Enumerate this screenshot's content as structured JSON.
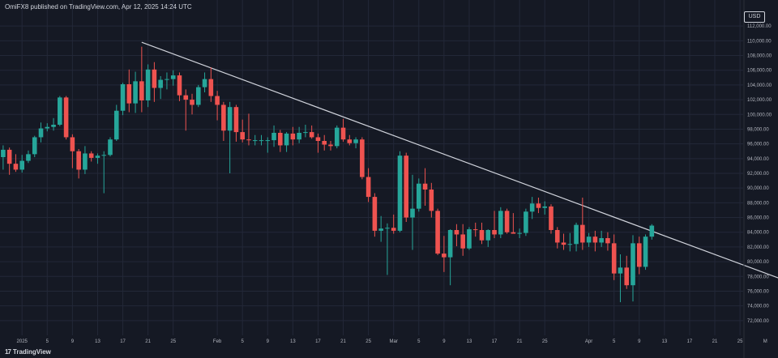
{
  "header": {
    "publisher": "OmiFX8 published on TradingView.com, Apr 12, 2025 14:24 UTC"
  },
  "brand": {
    "logo": "17",
    "name": "TradingView"
  },
  "currency": "USD",
  "colors": {
    "background": "#151924",
    "grid": "#232838",
    "up": "#26a69a",
    "down": "#ef5350",
    "trendline": "#d1d4dc",
    "text": "#b2b5be"
  },
  "chart_data": {
    "type": "candlestick",
    "title": "",
    "ylabel": "USD",
    "ylim": [
      70000,
      114000
    ],
    "y_ticks": [
      72000,
      74000,
      76000,
      78000,
      80000,
      82000,
      84000,
      86000,
      88000,
      90000,
      92000,
      94000,
      96000,
      98000,
      100000,
      102000,
      104000,
      106000,
      108000,
      110000,
      112000
    ],
    "y_tick_labels": [
      "72,000.00",
      "74,000.00",
      "76,000.00",
      "78,000.00",
      "80,000.00",
      "82,000.00",
      "84,000.00",
      "86,000.00",
      "88,000.00",
      "90,000.00",
      "92,000.00",
      "94,000.00",
      "96,000.00",
      "98,000.00",
      "100,000.00",
      "102,000.00",
      "104,000.00",
      "106,000.00",
      "108,000.00",
      "110,000.00",
      "112,000.00"
    ],
    "x_range": [
      -3.5,
      114.5
    ],
    "x_ticks": [
      {
        "day": 0,
        "label": "2025"
      },
      {
        "day": 4,
        "label": "5"
      },
      {
        "day": 8,
        "label": "9"
      },
      {
        "day": 12,
        "label": "13"
      },
      {
        "day": 16,
        "label": "17"
      },
      {
        "day": 20,
        "label": "21"
      },
      {
        "day": 24,
        "label": "25"
      },
      {
        "day": 31,
        "label": "Feb"
      },
      {
        "day": 35,
        "label": "5"
      },
      {
        "day": 39,
        "label": "9"
      },
      {
        "day": 43,
        "label": "13"
      },
      {
        "day": 47,
        "label": "17"
      },
      {
        "day": 51,
        "label": "21"
      },
      {
        "day": 55,
        "label": "25"
      },
      {
        "day": 59,
        "label": "Mar"
      },
      {
        "day": 63,
        "label": "5"
      },
      {
        "day": 67,
        "label": "9"
      },
      {
        "day": 71,
        "label": "13"
      },
      {
        "day": 75,
        "label": "17"
      },
      {
        "day": 79,
        "label": "21"
      },
      {
        "day": 83,
        "label": "25"
      },
      {
        "day": 90,
        "label": "Apr"
      },
      {
        "day": 94,
        "label": "5"
      },
      {
        "day": 98,
        "label": "9"
      },
      {
        "day": 102,
        "label": "13"
      },
      {
        "day": 106,
        "label": "17"
      },
      {
        "day": 110,
        "label": "21"
      },
      {
        "day": 114,
        "label": "25"
      },
      {
        "day": 118,
        "label": "M"
      }
    ],
    "candles": [
      {
        "day": -3,
        "o": 94200,
        "h": 95800,
        "l": 92500,
        "c": 95200
      },
      {
        "day": -2,
        "o": 95200,
        "h": 95500,
        "l": 91800,
        "c": 93300
      },
      {
        "day": -1,
        "o": 93300,
        "h": 94600,
        "l": 92200,
        "c": 92500
      },
      {
        "day": 0,
        "o": 92500,
        "h": 94500,
        "l": 92100,
        "c": 93700
      },
      {
        "day": 1,
        "o": 93700,
        "h": 95100,
        "l": 93400,
        "c": 94600
      },
      {
        "day": 2,
        "o": 94600,
        "h": 97100,
        "l": 94200,
        "c": 96900
      },
      {
        "day": 3,
        "o": 96900,
        "h": 98900,
        "l": 96200,
        "c": 98100
      },
      {
        "day": 4,
        "o": 98100,
        "h": 98800,
        "l": 97700,
        "c": 98300
      },
      {
        "day": 5,
        "o": 98300,
        "h": 99500,
        "l": 97800,
        "c": 98600
      },
      {
        "day": 6,
        "o": 98600,
        "h": 102500,
        "l": 98400,
        "c": 102300
      },
      {
        "day": 7,
        "o": 102300,
        "h": 102500,
        "l": 96600,
        "c": 96900
      },
      {
        "day": 8,
        "o": 96900,
        "h": 97300,
        "l": 92700,
        "c": 95000
      },
      {
        "day": 9,
        "o": 95000,
        "h": 95300,
        "l": 91300,
        "c": 92500
      },
      {
        "day": 10,
        "o": 92500,
        "h": 95700,
        "l": 91900,
        "c": 94700
      },
      {
        "day": 11,
        "o": 94700,
        "h": 95000,
        "l": 93600,
        "c": 94100
      },
      {
        "day": 12,
        "o": 94100,
        "h": 94700,
        "l": 93300,
        "c": 94400
      },
      {
        "day": 13,
        "o": 94400,
        "h": 95000,
        "l": 89300,
        "c": 94500
      },
      {
        "day": 14,
        "o": 94500,
        "h": 96900,
        "l": 94300,
        "c": 96600
      },
      {
        "day": 15,
        "o": 96600,
        "h": 101300,
        "l": 96400,
        "c": 100500
      },
      {
        "day": 16,
        "o": 100500,
        "h": 104300,
        "l": 99900,
        "c": 104100
      },
      {
        "day": 17,
        "o": 104100,
        "h": 106100,
        "l": 100300,
        "c": 101500
      },
      {
        "day": 18,
        "o": 101500,
        "h": 105800,
        "l": 100200,
        "c": 104500
      },
      {
        "day": 19,
        "o": 104500,
        "h": 109200,
        "l": 100300,
        "c": 101900
      },
      {
        "day": 20,
        "o": 101900,
        "h": 106800,
        "l": 101000,
        "c": 106100
      },
      {
        "day": 21,
        "o": 106100,
        "h": 107100,
        "l": 101700,
        "c": 103600
      },
      {
        "day": 22,
        "o": 103600,
        "h": 105200,
        "l": 102100,
        "c": 104700
      },
      {
        "day": 23,
        "o": 104700,
        "h": 105700,
        "l": 103400,
        "c": 104800
      },
      {
        "day": 24,
        "o": 104800,
        "h": 106000,
        "l": 103900,
        "c": 105300
      },
      {
        "day": 25,
        "o": 105300,
        "h": 105700,
        "l": 101800,
        "c": 102600
      },
      {
        "day": 26,
        "o": 102600,
        "h": 103400,
        "l": 97800,
        "c": 102000
      },
      {
        "day": 27,
        "o": 102000,
        "h": 102800,
        "l": 100000,
        "c": 101300
      },
      {
        "day": 28,
        "o": 101300,
        "h": 104000,
        "l": 101000,
        "c": 103700
      },
      {
        "day": 29,
        "o": 103700,
        "h": 105700,
        "l": 103000,
        "c": 104800
      },
      {
        "day": 30,
        "o": 104800,
        "h": 106400,
        "l": 101700,
        "c": 102500
      },
      {
        "day": 31,
        "o": 102500,
        "h": 103200,
        "l": 99200,
        "c": 101300
      },
      {
        "day": 32,
        "o": 101300,
        "h": 101700,
        "l": 96400,
        "c": 97800
      },
      {
        "day": 33,
        "o": 97800,
        "h": 101700,
        "l": 92000,
        "c": 101000
      },
      {
        "day": 34,
        "o": 101000,
        "h": 101300,
        "l": 96300,
        "c": 97600
      },
      {
        "day": 35,
        "o": 97600,
        "h": 99300,
        "l": 96200,
        "c": 96600
      },
      {
        "day": 36,
        "o": 96600,
        "h": 100100,
        "l": 95800,
        "c": 96500
      },
      {
        "day": 37,
        "o": 96500,
        "h": 97200,
        "l": 95800,
        "c": 96500
      },
      {
        "day": 38,
        "o": 96500,
        "h": 97200,
        "l": 95800,
        "c": 96500
      },
      {
        "day": 39,
        "o": 96500,
        "h": 96900,
        "l": 94800,
        "c": 96500
      },
      {
        "day": 40,
        "o": 96500,
        "h": 98500,
        "l": 95600,
        "c": 97500
      },
      {
        "day": 41,
        "o": 97500,
        "h": 97900,
        "l": 94900,
        "c": 95800
      },
      {
        "day": 42,
        "o": 95800,
        "h": 97600,
        "l": 94900,
        "c": 97400
      },
      {
        "day": 43,
        "o": 97400,
        "h": 98300,
        "l": 95800,
        "c": 96600
      },
      {
        "day": 44,
        "o": 96600,
        "h": 98300,
        "l": 96100,
        "c": 97500
      },
      {
        "day": 45,
        "o": 97500,
        "h": 98600,
        "l": 96900,
        "c": 97600
      },
      {
        "day": 46,
        "o": 97600,
        "h": 98500,
        "l": 96700,
        "c": 96900
      },
      {
        "day": 47,
        "o": 96900,
        "h": 97400,
        "l": 94800,
        "c": 96400
      },
      {
        "day": 48,
        "o": 96400,
        "h": 97200,
        "l": 95100,
        "c": 95900
      },
      {
        "day": 49,
        "o": 95900,
        "h": 96400,
        "l": 95100,
        "c": 95700
      },
      {
        "day": 50,
        "o": 95700,
        "h": 98500,
        "l": 95400,
        "c": 98200
      },
      {
        "day": 51,
        "o": 98200,
        "h": 99400,
        "l": 96300,
        "c": 96600
      },
      {
        "day": 52,
        "o": 96600,
        "h": 97200,
        "l": 95800,
        "c": 96100
      },
      {
        "day": 53,
        "o": 96100,
        "h": 96900,
        "l": 95400,
        "c": 96600
      },
      {
        "day": 54,
        "o": 96600,
        "h": 96900,
        "l": 91200,
        "c": 91500
      },
      {
        "day": 55,
        "o": 91500,
        "h": 92700,
        "l": 88100,
        "c": 88800
      },
      {
        "day": 56,
        "o": 88800,
        "h": 89300,
        "l": 83400,
        "c": 84200
      },
      {
        "day": 57,
        "o": 84200,
        "h": 86200,
        "l": 82700,
        "c": 84500
      },
      {
        "day": 58,
        "o": 84500,
        "h": 85200,
        "l": 78200,
        "c": 84600
      },
      {
        "day": 59,
        "o": 84600,
        "h": 86400,
        "l": 83800,
        "c": 84200
      },
      {
        "day": 60,
        "o": 84200,
        "h": 95000,
        "l": 84000,
        "c": 94400
      },
      {
        "day": 61,
        "o": 94400,
        "h": 94800,
        "l": 85400,
        "c": 86000
      },
      {
        "day": 62,
        "o": 86000,
        "h": 91800,
        "l": 81600,
        "c": 87200
      },
      {
        "day": 63,
        "o": 87200,
        "h": 91300,
        "l": 86800,
        "c": 90600
      },
      {
        "day": 64,
        "o": 90600,
        "h": 92700,
        "l": 87600,
        "c": 89800
      },
      {
        "day": 65,
        "o": 89800,
        "h": 90700,
        "l": 86000,
        "c": 86900
      },
      {
        "day": 66,
        "o": 86900,
        "h": 87200,
        "l": 80900,
        "c": 81100
      },
      {
        "day": 67,
        "o": 81100,
        "h": 83500,
        "l": 78600,
        "c": 80600
      },
      {
        "day": 68,
        "o": 80600,
        "h": 84400,
        "l": 76800,
        "c": 84300
      },
      {
        "day": 69,
        "o": 84300,
        "h": 85100,
        "l": 82100,
        "c": 83700
      },
      {
        "day": 70,
        "o": 83700,
        "h": 85100,
        "l": 80800,
        "c": 81800
      },
      {
        "day": 71,
        "o": 81800,
        "h": 84700,
        "l": 81600,
        "c": 84400
      },
      {
        "day": 72,
        "o": 84400,
        "h": 85300,
        "l": 83400,
        "c": 84300
      },
      {
        "day": 73,
        "o": 84300,
        "h": 85300,
        "l": 82400,
        "c": 82900
      },
      {
        "day": 74,
        "o": 82900,
        "h": 84400,
        "l": 82000,
        "c": 84300
      },
      {
        "day": 75,
        "o": 84300,
        "h": 86900,
        "l": 83200,
        "c": 83700
      },
      {
        "day": 76,
        "o": 83700,
        "h": 87400,
        "l": 83200,
        "c": 86900
      },
      {
        "day": 77,
        "o": 86900,
        "h": 87200,
        "l": 83800,
        "c": 84000
      },
      {
        "day": 78,
        "o": 84000,
        "h": 86600,
        "l": 83800,
        "c": 83800
      },
      {
        "day": 79,
        "o": 83800,
        "h": 84500,
        "l": 83200,
        "c": 83900
      },
      {
        "day": 80,
        "o": 83900,
        "h": 87200,
        "l": 83500,
        "c": 86800
      },
      {
        "day": 81,
        "o": 86800,
        "h": 88800,
        "l": 85800,
        "c": 87900
      },
      {
        "day": 82,
        "o": 87900,
        "h": 88700,
        "l": 86600,
        "c": 87300
      },
      {
        "day": 83,
        "o": 87300,
        "h": 88200,
        "l": 86400,
        "c": 87500
      },
      {
        "day": 84,
        "o": 87500,
        "h": 87800,
        "l": 83800,
        "c": 84300
      },
      {
        "day": 85,
        "o": 84300,
        "h": 84700,
        "l": 81800,
        "c": 82600
      },
      {
        "day": 86,
        "o": 82600,
        "h": 83800,
        "l": 81600,
        "c": 82300
      },
      {
        "day": 87,
        "o": 82300,
        "h": 83900,
        "l": 81400,
        "c": 82400
      },
      {
        "day": 88,
        "o": 82400,
        "h": 85300,
        "l": 81400,
        "c": 85000
      },
      {
        "day": 89,
        "o": 85000,
        "h": 88700,
        "l": 81600,
        "c": 82600
      },
      {
        "day": 90,
        "o": 82600,
        "h": 83900,
        "l": 82000,
        "c": 83400
      },
      {
        "day": 91,
        "o": 83400,
        "h": 84200,
        "l": 81400,
        "c": 82600
      },
      {
        "day": 92,
        "o": 82600,
        "h": 84200,
        "l": 82000,
        "c": 83200
      },
      {
        "day": 93,
        "o": 83200,
        "h": 84000,
        "l": 81500,
        "c": 82500
      },
      {
        "day": 94,
        "o": 82500,
        "h": 83700,
        "l": 77500,
        "c": 78400
      },
      {
        "day": 95,
        "o": 78400,
        "h": 81000,
        "l": 74500,
        "c": 79200
      },
      {
        "day": 96,
        "o": 79200,
        "h": 80800,
        "l": 76300,
        "c": 76800
      },
      {
        "day": 97,
        "o": 76800,
        "h": 83600,
        "l": 74600,
        "c": 82500
      },
      {
        "day": 98,
        "o": 82500,
        "h": 83400,
        "l": 78300,
        "c": 79300
      },
      {
        "day": 99,
        "o": 79300,
        "h": 83700,
        "l": 78900,
        "c": 83400
      },
      {
        "day": 100,
        "o": 83400,
        "h": 85100,
        "l": 83000,
        "c": 84900
      }
    ],
    "trendline": {
      "from": {
        "day": 19,
        "price": 109800
      },
      "to": {
        "day": 121,
        "price": 77500
      }
    }
  }
}
